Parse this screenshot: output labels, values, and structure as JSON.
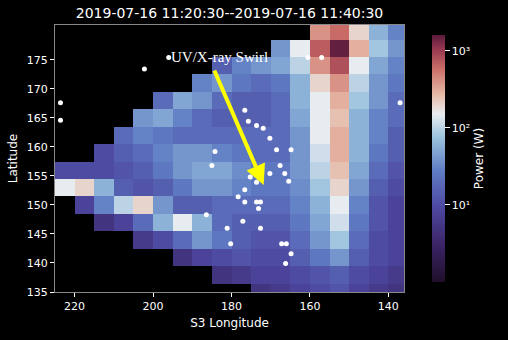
{
  "chart_data": {
    "type": "heatmap",
    "title": "2019-07-16 11:20:30--2019-07-16 11:40:30",
    "x_label": "S3 Longitude",
    "y_label": "Latitude",
    "xlim": [
      225,
      136
    ],
    "xticks": [
      220,
      200,
      180,
      160,
      140
    ],
    "ylim": [
      135,
      181
    ],
    "yticks": [
      135,
      140,
      145,
      150,
      155,
      160,
      165,
      170,
      175
    ],
    "grid": false,
    "x": [
      222.5,
      217.5,
      212.5,
      207.5,
      202.5,
      197.5,
      192.5,
      187.5,
      182.5,
      177.5,
      172.5,
      167.5,
      162.5,
      157.5,
      152.5,
      147.5,
      142.5,
      137.5
    ],
    "y": [
      135,
      138,
      141,
      144,
      147,
      150,
      153,
      156,
      159,
      162,
      165,
      168,
      171,
      174,
      177,
      180
    ],
    "cells": [
      [
        null,
        null,
        null,
        null,
        null,
        null,
        null,
        null,
        null,
        null,
        5,
        6,
        8,
        10,
        12,
        8,
        6,
        5
      ],
      [
        null,
        null,
        null,
        null,
        null,
        null,
        null,
        null,
        5,
        6,
        8,
        8,
        10,
        12,
        15,
        10,
        8,
        6
      ],
      [
        null,
        null,
        null,
        null,
        null,
        null,
        5,
        8,
        10,
        12,
        10,
        10,
        15,
        25,
        40,
        15,
        10,
        8
      ],
      [
        null,
        null,
        null,
        null,
        6,
        10,
        20,
        40,
        25,
        15,
        12,
        12,
        20,
        40,
        80,
        20,
        10,
        8
      ],
      [
        null,
        null,
        5,
        8,
        20,
        60,
        150,
        60,
        20,
        15,
        15,
        15,
        25,
        50,
        120,
        25,
        12,
        8
      ],
      [
        null,
        8,
        30,
        100,
        200,
        40,
        15,
        15,
        20,
        20,
        20,
        20,
        30,
        60,
        150,
        30,
        12,
        8
      ],
      [
        150,
        200,
        60,
        15,
        12,
        15,
        25,
        40,
        40,
        30,
        25,
        25,
        35,
        80,
        200,
        40,
        15,
        10
      ],
      [
        10,
        10,
        10,
        12,
        15,
        25,
        40,
        50,
        50,
        35,
        25,
        25,
        40,
        100,
        250,
        50,
        20,
        12
      ],
      [
        null,
        null,
        10,
        15,
        20,
        30,
        40,
        40,
        30,
        25,
        20,
        20,
        40,
        120,
        300,
        60,
        25,
        15
      ],
      [
        null,
        null,
        null,
        20,
        30,
        25,
        20,
        20,
        20,
        20,
        20,
        20,
        40,
        150,
        300,
        60,
        30,
        15
      ],
      [
        null,
        null,
        null,
        null,
        40,
        50,
        30,
        20,
        15,
        15,
        15,
        20,
        50,
        150,
        250,
        60,
        30,
        20
      ],
      [
        null,
        null,
        null,
        null,
        null,
        20,
        50,
        40,
        20,
        15,
        15,
        20,
        60,
        150,
        300,
        80,
        40,
        20
      ],
      [
        null,
        null,
        null,
        null,
        null,
        null,
        null,
        30,
        40,
        25,
        20,
        25,
        60,
        200,
        400,
        100,
        40,
        25
      ],
      [
        null,
        null,
        null,
        null,
        null,
        null,
        null,
        null,
        15,
        30,
        40,
        50,
        100,
        400,
        800,
        150,
        50,
        30
      ],
      [
        null,
        null,
        null,
        null,
        null,
        null,
        null,
        null,
        null,
        null,
        null,
        40,
        150,
        700,
        1500,
        300,
        80,
        40
      ],
      [
        null,
        null,
        null,
        null,
        null,
        null,
        null,
        null,
        null,
        null,
        null,
        null,
        null,
        400,
        600,
        200,
        60,
        30
      ]
    ],
    "colorbar": {
      "title": "Power (W)",
      "log": true,
      "range": [
        1,
        1600
      ],
      "ticks": [
        {
          "value": 10,
          "label": "10¹"
        },
        {
          "value": 100,
          "label": "10²"
        },
        {
          "value": 1000,
          "label": "10³"
        }
      ]
    },
    "series": [
      {
        "type": "scatter",
        "marker": "circle",
        "color": "#ffffff",
        "x": [
          223.6,
          223.6,
          202.2,
          196.0,
          160.5,
          157.0,
          137.0,
          184.2,
          185.0,
          176.6,
          175.7,
          173.6,
          171.9,
          170.2,
          168.5,
          164.8,
          172.4,
          167.6,
          170.2,
          166.4,
          165.4,
          175.2,
          173.6,
          176.6,
          178.3,
          176.6,
          173.6,
          172.6,
          173.1,
          177.1,
          186.4,
          181.1,
          172.6,
          180.2,
          167.2,
          166.0,
          164.8,
          166.2
        ],
        "values": [
          167.6,
          164.6,
          173.4,
          175.4,
          175.4,
          175.4,
          167.6,
          159.2,
          156.8,
          166.3,
          164.4,
          163.7,
          163.2,
          161.5,
          159.5,
          159.5,
          156.1,
          156.8,
          155.4,
          155.4,
          154.1,
          154.8,
          153.9,
          152.6,
          151.4,
          150.5,
          150.5,
          150.5,
          149.4,
          147.2,
          148.3,
          146.0,
          146.0,
          143.3,
          143.3,
          143.3,
          141.6,
          139.9
        ]
      }
    ],
    "annotations": [
      {
        "text": "UV/X-ray Swirl",
        "color": "#ffff00"
      }
    ]
  }
}
